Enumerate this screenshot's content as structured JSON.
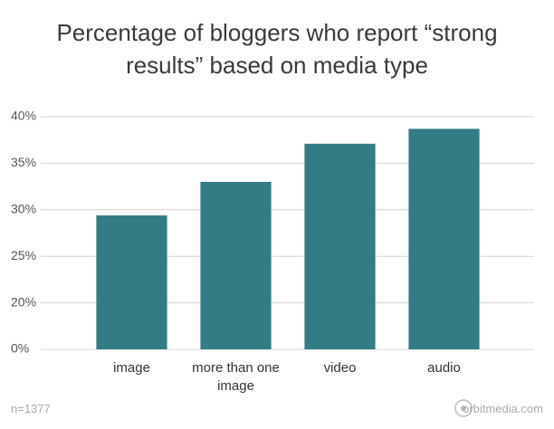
{
  "chart_data": {
    "type": "bar",
    "title": "Percentage of bloggers who report “strong results” based on media type",
    "categories": [
      "image",
      "more than one image",
      "video",
      "audio"
    ],
    "values": [
      29.4,
      33.0,
      37.1,
      38.7
    ],
    "color": "#337c85",
    "ylim": [
      0,
      40
    ],
    "axis_break": [
      0,
      20
    ],
    "yticks": [
      {
        "value": 0,
        "label": "0%"
      },
      {
        "value": 20,
        "label": "20%"
      },
      {
        "value": 25,
        "label": "25%"
      },
      {
        "value": 30,
        "label": "30%"
      },
      {
        "value": 35,
        "label": "35%"
      },
      {
        "value": 40,
        "label": "40%"
      }
    ],
    "grid": true,
    "note": "n=1377",
    "source": "orbitmedia.com"
  }
}
